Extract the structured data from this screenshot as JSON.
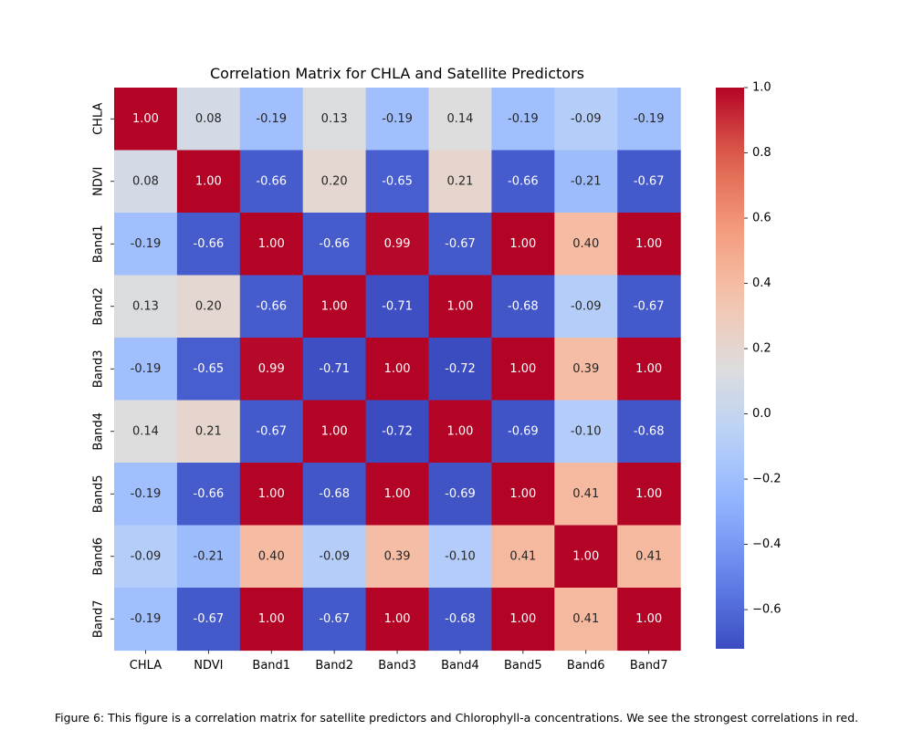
{
  "chart_data": {
    "type": "heatmap",
    "title": "Correlation Matrix for CHLA and Satellite Predictors",
    "rows": [
      "CHLA",
      "NDVI",
      "Band1",
      "Band2",
      "Band3",
      "Band4",
      "Band5",
      "Band6",
      "Band7"
    ],
    "columns": [
      "CHLA",
      "NDVI",
      "Band1",
      "Band2",
      "Band3",
      "Band4",
      "Band5",
      "Band6",
      "Band7"
    ],
    "values": [
      [
        1.0,
        0.08,
        -0.19,
        0.13,
        -0.19,
        0.14,
        -0.19,
        -0.09,
        -0.19
      ],
      [
        0.08,
        1.0,
        -0.66,
        0.2,
        -0.65,
        0.21,
        -0.66,
        -0.21,
        -0.67
      ],
      [
        -0.19,
        -0.66,
        1.0,
        -0.66,
        0.99,
        -0.67,
        1.0,
        0.4,
        1.0
      ],
      [
        0.13,
        0.2,
        -0.66,
        1.0,
        -0.71,
        1.0,
        -0.68,
        -0.09,
        -0.67
      ],
      [
        -0.19,
        -0.65,
        0.99,
        -0.71,
        1.0,
        -0.72,
        1.0,
        0.39,
        1.0
      ],
      [
        0.14,
        0.21,
        -0.67,
        1.0,
        -0.72,
        1.0,
        -0.69,
        -0.1,
        -0.68
      ],
      [
        -0.19,
        -0.66,
        1.0,
        -0.68,
        1.0,
        -0.69,
        1.0,
        0.41,
        1.0
      ],
      [
        -0.09,
        -0.21,
        0.4,
        -0.09,
        0.39,
        -0.1,
        0.41,
        1.0,
        0.41
      ],
      [
        -0.19,
        -0.67,
        1.0,
        -0.67,
        1.0,
        -0.68,
        1.0,
        0.41,
        1.0
      ]
    ],
    "colormap": "coolwarm",
    "vmin": -0.72,
    "vmax": 1.0,
    "colorbar_ticks": [
      "1.0",
      "0.8",
      "0.6",
      "0.4",
      "0.2",
      "0.0",
      "−0.2",
      "−0.4",
      "−0.6"
    ],
    "colorbar_tick_values": [
      1.0,
      0.8,
      0.6,
      0.4,
      0.2,
      0.0,
      -0.2,
      -0.4,
      -0.6
    ],
    "annotations": true,
    "legend": "colorbar-right"
  },
  "caption": "Figure 6: This figure is a correlation matrix for satellite predictors and Chlorophyll-a concentrations. We see the strongest correlations in red."
}
